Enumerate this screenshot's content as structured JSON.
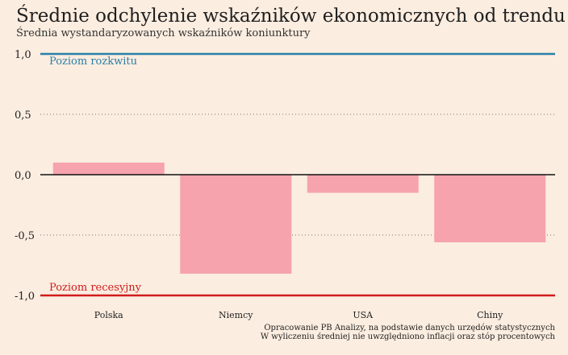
{
  "title": "Średnie odchylenie wskaźników ekonomicznych od trendu",
  "subtitle": "Średnia wystandaryzowanych wskaźników koniunktury",
  "colors": {
    "background": "#fbede0",
    "bar": "#f6a3ad",
    "boom_line": "#2b7fa8",
    "recession_line": "#d01c1c",
    "zero_line": "#111111",
    "grid": "#777777"
  },
  "chart_data": {
    "type": "bar",
    "categories": [
      "Polska",
      "Niemcy",
      "USA",
      "Chiny"
    ],
    "values": [
      0.1,
      -0.82,
      -0.15,
      -0.56
    ],
    "ylim": [
      -1.0,
      1.0
    ],
    "yticks": [
      1.0,
      0.5,
      0.0,
      -0.5,
      -1.0
    ],
    "ytick_labels": [
      "1,0",
      "0,5",
      "0,0",
      "-0,5",
      "-1,0"
    ],
    "grid": "dotted horizontal",
    "reference_lines": [
      {
        "value": 1.0,
        "label": "Poziom rozkwitu",
        "color": "#2b7fa8"
      },
      {
        "value": -1.0,
        "label": "Poziom recesyjny",
        "color": "#d01c1c"
      }
    ]
  },
  "source_note": "Opracowanie PB Analizy, na podstawie danych urzędów statystycznych",
  "method_note": "W wyliczeniu średniej nie uwzględniono inflacji oraz stóp procentowych"
}
